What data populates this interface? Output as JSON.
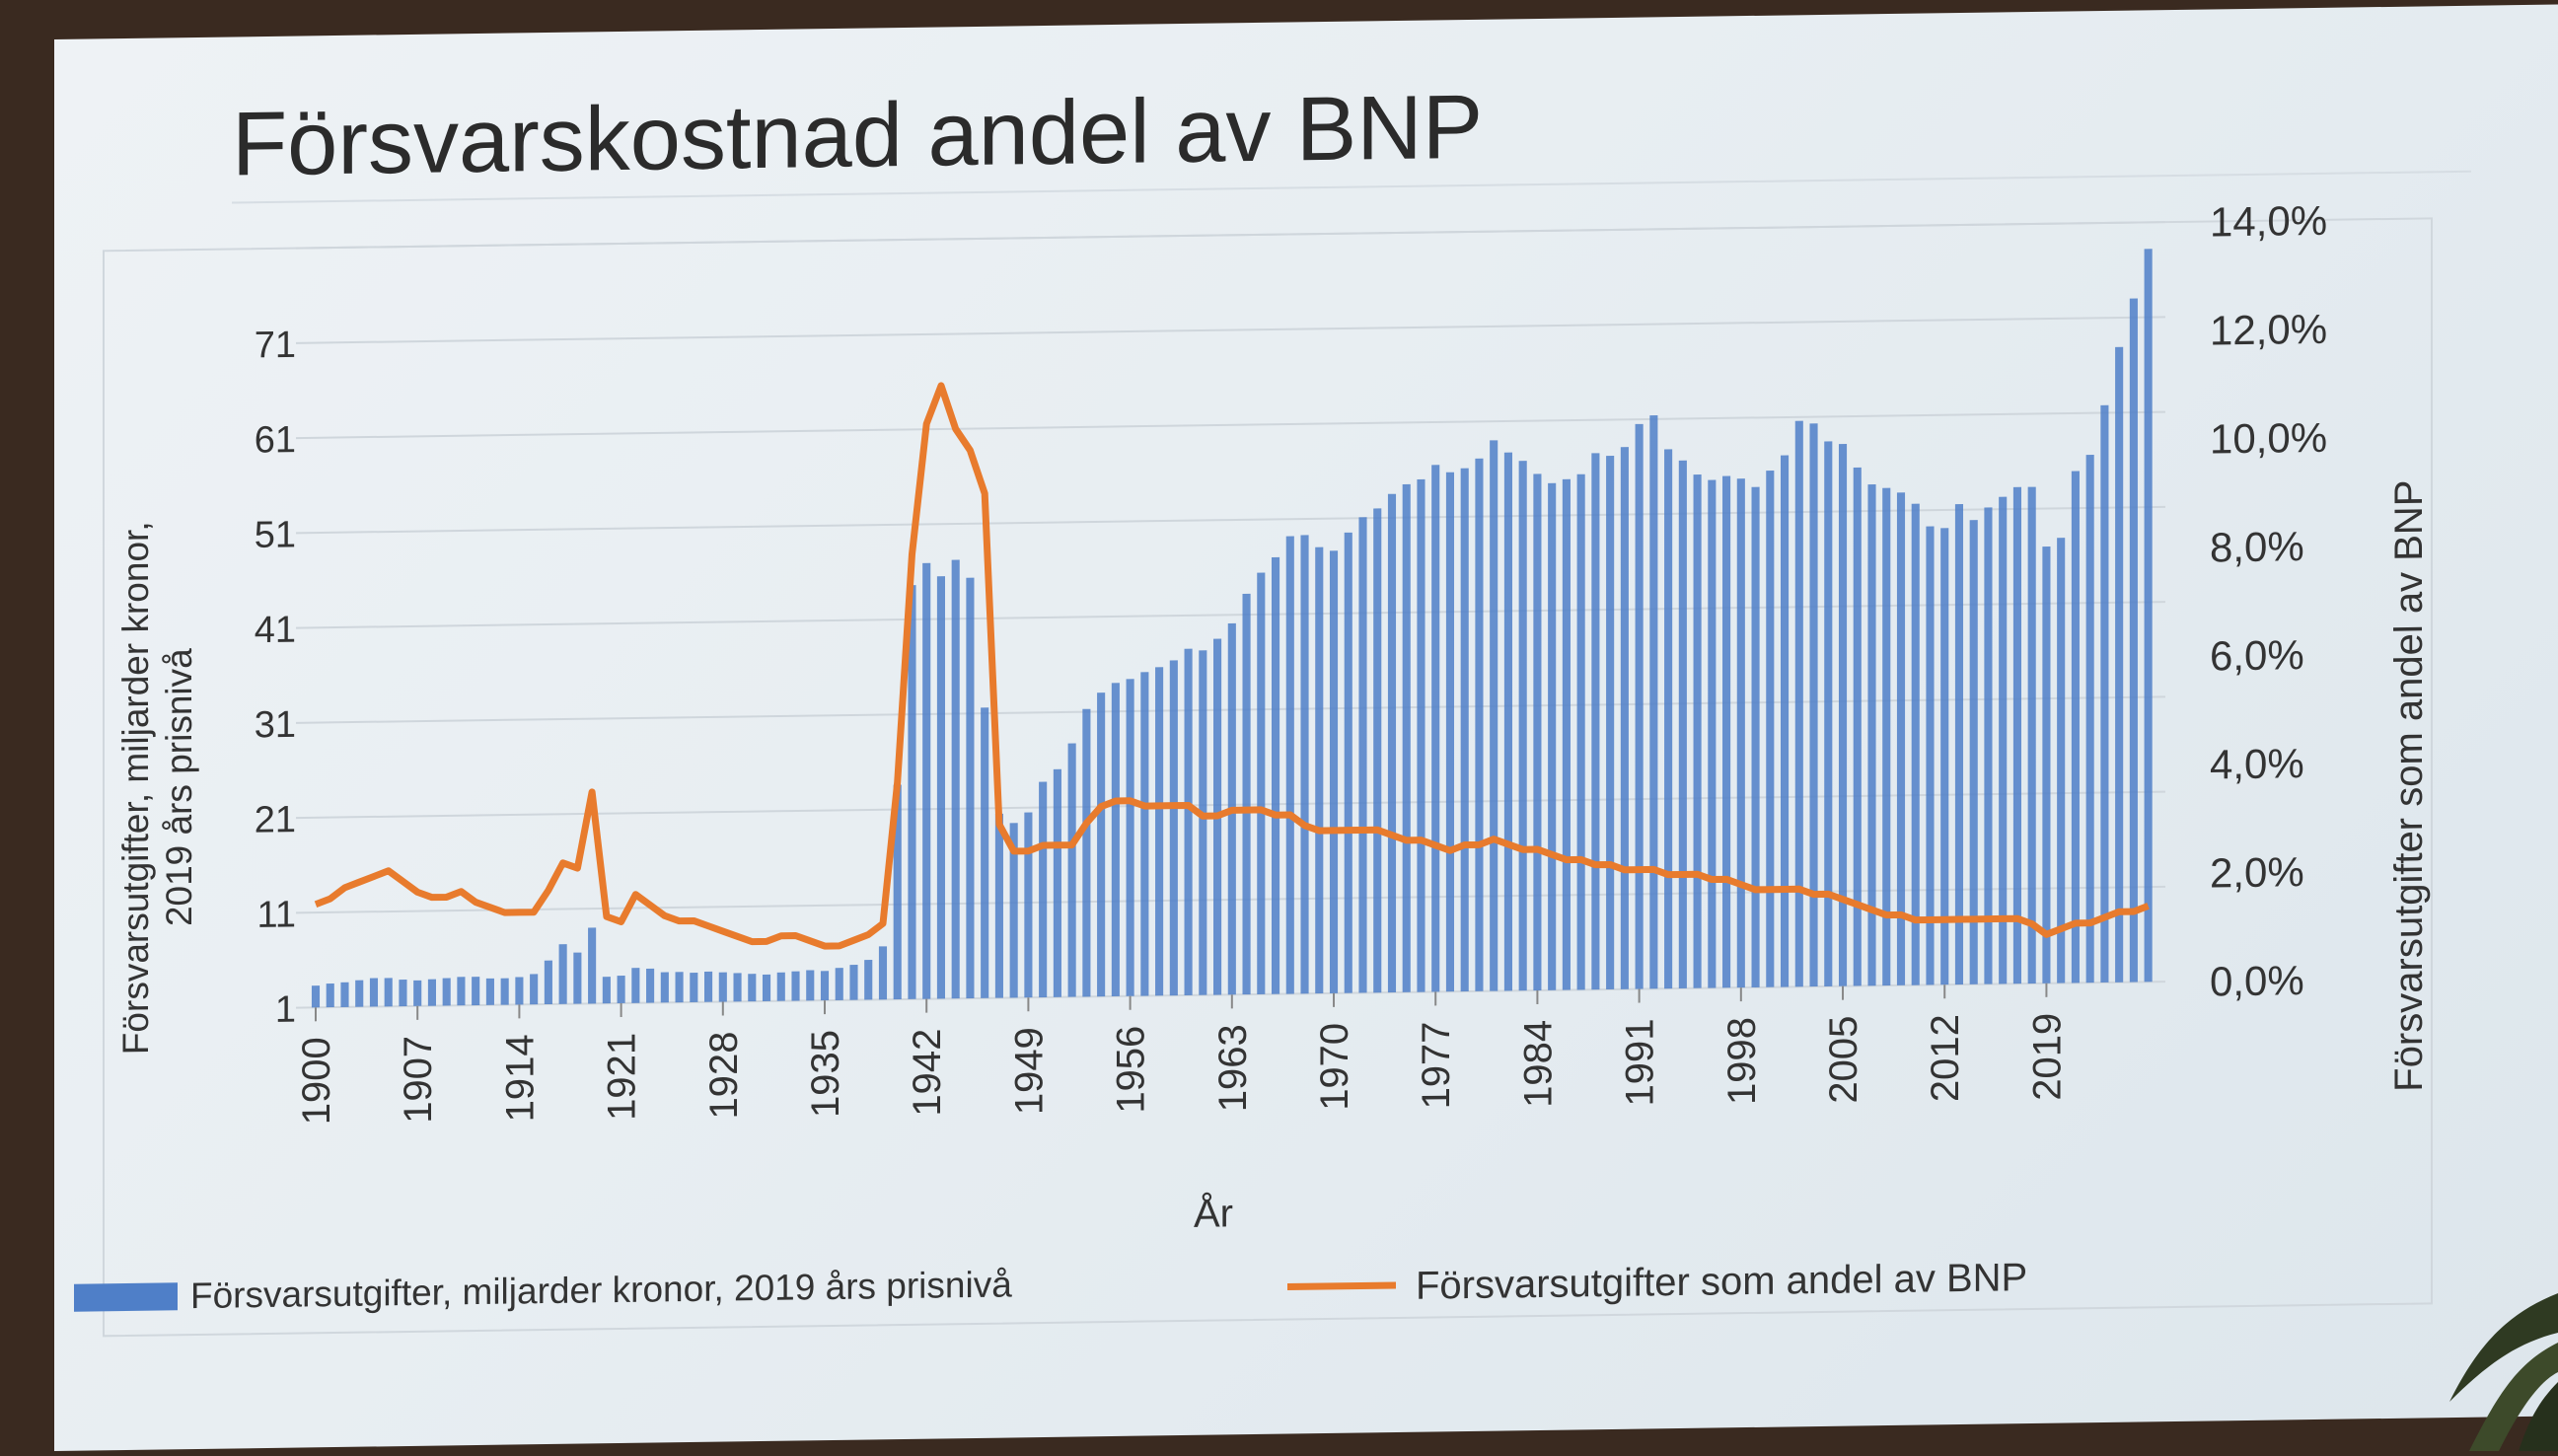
{
  "slide": {
    "title": "Försvarskostnad andel av BNP"
  },
  "chart_data": {
    "type": "bar",
    "title": "",
    "xlabel": "År",
    "ylabel_left": "Försvarsutgifter, miljarder kronor, 2019 års prisnivå",
    "ylabel_right": "Försvarsutgifter som andel av BNP",
    "ylim_left": [
      1,
      81
    ],
    "yticks_left": [
      "1",
      "11",
      "21",
      "31",
      "41",
      "51",
      "61",
      "71"
    ],
    "ylim_right": [
      0,
      14
    ],
    "yticks_right": [
      "0,0%",
      "2,0%",
      "4,0%",
      "6,0%",
      "8,0%",
      "10,0%",
      "12,0%",
      "14,0%"
    ],
    "xticks": [
      "1900",
      "1907",
      "1914",
      "1921",
      "1928",
      "1935",
      "1942",
      "1949",
      "1956",
      "1963",
      "1970",
      "1977",
      "1984",
      "1991",
      "1998",
      "2005",
      "2012",
      "2019"
    ],
    "legend_position": "bottom",
    "grid": true,
    "x_start_year": 1900,
    "series": [
      {
        "name": "Försvarsutgifter, miljarder kronor, 2019 års prisnivå",
        "type": "bar",
        "axis": "left",
        "color": "#4f7fc8",
        "values": [
          3.3,
          3.5,
          3.6,
          3.8,
          4.0,
          4.0,
          3.8,
          3.7,
          3.8,
          3.9,
          4.0,
          4.0,
          3.8,
          3.8,
          3.9,
          4.2,
          5.6,
          7.3,
          6.4,
          9.0,
          3.8,
          3.9,
          4.7,
          4.6,
          4.2,
          4.2,
          4.1,
          4.2,
          4.1,
          4.0,
          3.9,
          3.8,
          4.0,
          4.1,
          4.2,
          4.1,
          4.4,
          4.7,
          5.2,
          6.6,
          23.6,
          44.6,
          46.9,
          45.5,
          47.2,
          45.3,
          31.6,
          20.4,
          19.4,
          20.5,
          23.7,
          25.0,
          27.7,
          31.3,
          33.0,
          34.0,
          34.4,
          35.1,
          35.6,
          36.3,
          37.5,
          37.3,
          38.5,
          40.1,
          43.2,
          45.4,
          47.0,
          49.2,
          49.3,
          48.0,
          47.6,
          49.5,
          51.1,
          52.0,
          53.5,
          54.5,
          55.0,
          56.5,
          55.7,
          56.1,
          57.1,
          59.0,
          57.7,
          56.8,
          55.4,
          54.4,
          54.8,
          55.3,
          57.5,
          57.2,
          58.1,
          60.5,
          61.4,
          57.8,
          56.6,
          55.1,
          54.5,
          54.9,
          54.6,
          53.7,
          55.4,
          57.0,
          60.6,
          60.3,
          58.4,
          58.1,
          55.6,
          53.8,
          53.4,
          52.9,
          51.7,
          49.3,
          49.1,
          51.6,
          49.9,
          51.2,
          52.3,
          53.3,
          53.3,
          47.0,
          47.9,
          54.9,
          56.6,
          61.8,
          67.9,
          73.0,
          78.2
        ]
      },
      {
        "name": "Försvarsutgifter som andel av BNP",
        "type": "line",
        "axis": "right",
        "color": "#e87b2d",
        "values": [
          1.9,
          2.0,
          2.2,
          2.3,
          2.4,
          2.5,
          2.3,
          2.1,
          2.0,
          2.0,
          2.1,
          1.9,
          1.8,
          1.7,
          1.7,
          1.7,
          2.1,
          2.6,
          2.5,
          3.9,
          1.6,
          1.5,
          2.0,
          1.8,
          1.6,
          1.5,
          1.5,
          1.4,
          1.3,
          1.2,
          1.1,
          1.1,
          1.2,
          1.2,
          1.1,
          1.0,
          1.0,
          1.1,
          1.2,
          1.4,
          4.0,
          8.2,
          10.6,
          11.3,
          10.5,
          10.1,
          9.3,
          3.2,
          2.7,
          2.7,
          2.8,
          2.8,
          2.8,
          3.2,
          3.5,
          3.6,
          3.6,
          3.5,
          3.5,
          3.5,
          3.5,
          3.3,
          3.3,
          3.4,
          3.4,
          3.4,
          3.3,
          3.3,
          3.1,
          3.0,
          3.0,
          3.0,
          3.0,
          3.0,
          2.9,
          2.8,
          2.8,
          2.7,
          2.6,
          2.7,
          2.7,
          2.8,
          2.7,
          2.6,
          2.6,
          2.5,
          2.4,
          2.4,
          2.3,
          2.3,
          2.2,
          2.2,
          2.2,
          2.1,
          2.1,
          2.1,
          2.0,
          2.0,
          1.9,
          1.8,
          1.8,
          1.8,
          1.8,
          1.7,
          1.7,
          1.6,
          1.5,
          1.4,
          1.3,
          1.3,
          1.2,
          1.2,
          1.2,
          1.2,
          1.2,
          1.2,
          1.2,
          1.2,
          1.1,
          0.9,
          1.0,
          1.1,
          1.1,
          1.2,
          1.3,
          1.3,
          1.4
        ]
      }
    ]
  }
}
